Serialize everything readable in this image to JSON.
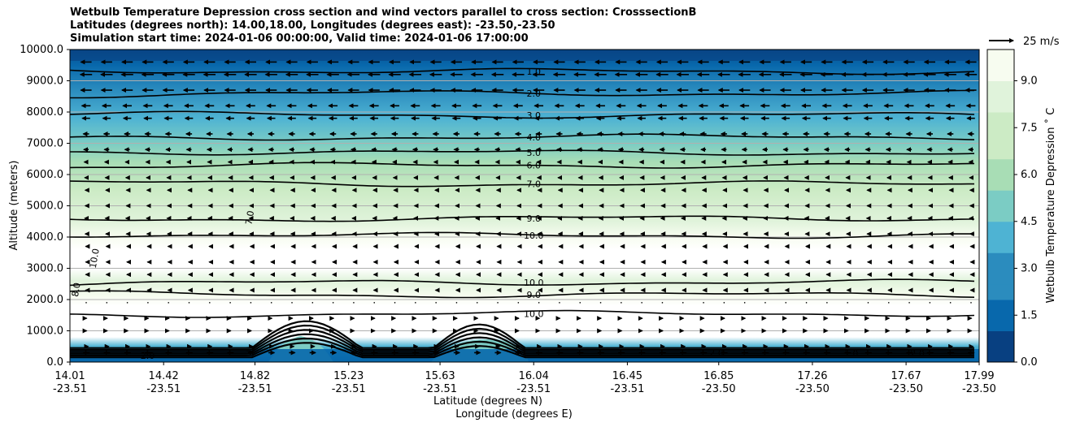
{
  "title": {
    "line1": "Wetbulb Temperature Depression cross section and wind vectors parallel to cross section: CrosssectionB",
    "line2": "Latitudes (degrees north): 14.00,18.00, Longitudes (degrees east): -23.50,-23.50",
    "line3": "Simulation start time: 2024-01-06 00:00:00, Valid time: 2024-01-06 17:00:00"
  },
  "colors": {
    "c0": "#084081",
    "c1": "#0868ac",
    "c2": "#2b8cbe",
    "c3": "#4eb3d3",
    "c4": "#7bccc4",
    "c5": "#a8ddb5",
    "c6": "#ccebc5",
    "c7": "#e0f3db",
    "c8": "#f7fcf0",
    "above": "#ffffff",
    "contour": "#000000",
    "grid": "#b0b0b0"
  },
  "chart_data": {
    "type": "heatmap",
    "ylabel": "Altitude (meters)",
    "xlabel": "Latitude (degrees N)",
    "xlabel2": "Longitude (degrees E)",
    "ylim": [
      0,
      10000
    ],
    "y_ticks": [
      "0.0",
      "1000.0",
      "2000.0",
      "3000.0",
      "4000.0",
      "5000.0",
      "6000.0",
      "7000.0",
      "8000.0",
      "9000.0",
      "10000.0"
    ],
    "y_tick_values": [
      0,
      1000,
      2000,
      3000,
      4000,
      5000,
      6000,
      7000,
      8000,
      9000,
      10000
    ],
    "x_ticks_lat": [
      "14.01",
      "14.42",
      "14.82",
      "15.23",
      "15.63",
      "16.04",
      "16.45",
      "16.85",
      "17.26",
      "17.67",
      "17.99"
    ],
    "x_ticks_lon": [
      "-23.51",
      "-23.51",
      "-23.51",
      "-23.51",
      "-23.51",
      "-23.51",
      "-23.51",
      "-23.50",
      "-23.50",
      "-23.50",
      "-23.50"
    ],
    "x_tick_values": [
      14.01,
      14.42,
      14.82,
      15.23,
      15.63,
      16.04,
      16.45,
      16.85,
      17.26,
      17.67,
      17.99
    ],
    "xlim": [
      14.01,
      17.99
    ],
    "grid": "horizontal",
    "colorbar": {
      "label": "Wetbulb Temperature Depression ˚ C",
      "range": [
        0,
        10
      ],
      "ticks": [
        "0.0",
        "1.5",
        "3.0",
        "4.5",
        "6.0",
        "7.5",
        "9.0"
      ],
      "tick_values": [
        0,
        1.5,
        3.0,
        4.5,
        6.0,
        7.5,
        9.0
      ]
    },
    "quiver_key": {
      "label": "25 m/s",
      "speed": 25
    },
    "contour_levels": [
      {
        "value": 1.0,
        "label": "1.0",
        "altitude_m": 9300
      },
      {
        "value": 2.0,
        "label": "2.0",
        "altitude_m": 8600
      },
      {
        "value": 3.0,
        "label": "3.0",
        "altitude_m": 7900
      },
      {
        "value": 4.0,
        "label": "4.0",
        "altitude_m": 7200
      },
      {
        "value": 5.0,
        "label": "5.0",
        "altitude_m": 6700
      },
      {
        "value": 6.0,
        "label": "6.0",
        "altitude_m": 6300
      },
      {
        "value": 7.0,
        "label": "7.0",
        "altitude_m": 5700
      },
      {
        "value": 9.0,
        "label": "9.0",
        "altitude_m": 4600
      },
      {
        "value": 10.0,
        "label": "10.0",
        "altitude_m": 4050
      },
      {
        "value": 10.0,
        "label": "10.0",
        "altitude_m": 2550
      },
      {
        "value": 9.0,
        "label": "9.0",
        "altitude_m": 2150
      },
      {
        "value": 10.0,
        "label": "10.0",
        "altitude_m": 1550
      }
    ],
    "side_contour_labels": [
      {
        "label": "7.0",
        "lat": 14.81,
        "altitude_m": 4600
      },
      {
        "label": "10.0",
        "lat": 14.13,
        "altitude_m": 3300
      },
      {
        "label": "8.0",
        "lat": 14.05,
        "altitude_m": 2300
      }
    ],
    "surface_labels": [
      {
        "label": "2.0",
        "lat": 16.84,
        "altitude_m": 200
      },
      {
        "label": "1.0",
        "lat": 17.43,
        "altitude_m": 180
      },
      {
        "label": "2.0",
        "lat": 17.72,
        "altitude_m": 180
      },
      {
        "label": "2.0",
        "lat": 14.35,
        "altitude_m": 100
      }
    ],
    "wind_rows": [
      {
        "altitude_m": 9600,
        "u": -11
      },
      {
        "altitude_m": 9200,
        "u": -12
      },
      {
        "altitude_m": 8700,
        "u": -11
      },
      {
        "altitude_m": 8200,
        "u": -9
      },
      {
        "altitude_m": 7800,
        "u": -8
      },
      {
        "altitude_m": 7300,
        "u": -6
      },
      {
        "altitude_m": 6800,
        "u": -5
      },
      {
        "altitude_m": 6400,
        "u": -4
      },
      {
        "altitude_m": 5900,
        "u": -3
      },
      {
        "altitude_m": 5500,
        "u": -2
      },
      {
        "altitude_m": 5000,
        "u": -2
      },
      {
        "altitude_m": 4600,
        "u": -3
      },
      {
        "altitude_m": 4100,
        "u": -2
      },
      {
        "altitude_m": 3700,
        "u": -1
      },
      {
        "altitude_m": 3200,
        "u": -1
      },
      {
        "altitude_m": 2800,
        "u": -1
      },
      {
        "altitude_m": 2300,
        "u": -1
      },
      {
        "altitude_m": 1900,
        "u": 0
      },
      {
        "altitude_m": 1400,
        "u": 1
      },
      {
        "altitude_m": 1000,
        "u": 1
      },
      {
        "altitude_m": 500,
        "u": 4
      },
      {
        "altitude_m": 300,
        "u": 6
      }
    ]
  }
}
